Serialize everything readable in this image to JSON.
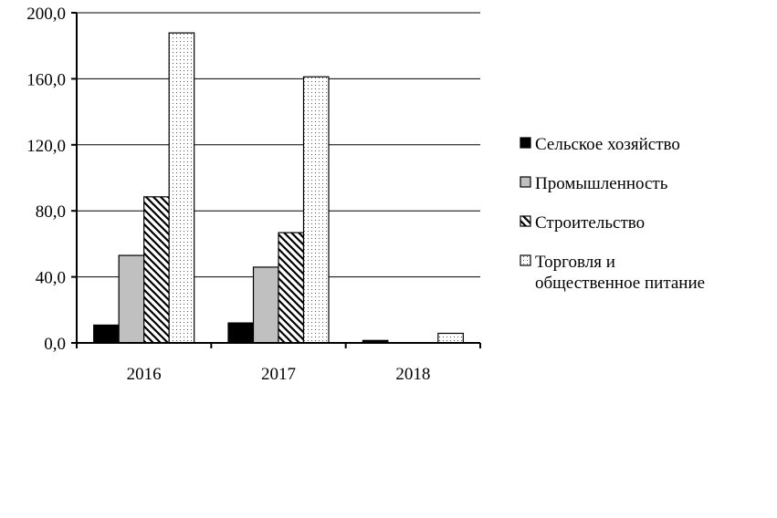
{
  "chart_data": {
    "type": "bar",
    "categories": [
      "2016",
      "2017",
      "2018"
    ],
    "series": [
      {
        "name": "Сельское хозяйство",
        "values": [
          10.8,
          12.1,
          1.5
        ],
        "color": "#000000",
        "fill_style": "solid"
      },
      {
        "name": "Промышленность",
        "values": [
          53.0,
          45.9,
          0
        ],
        "color": "#c0c0c0",
        "fill_style": "solid"
      },
      {
        "name": "Строительство",
        "values": [
          88.5,
          66.8,
          0
        ],
        "color": "#ffffff",
        "fill_style": "diagonal-hatch"
      },
      {
        "name": "Торговля и общественное питание",
        "values": [
          187.8,
          161.2,
          5.8
        ],
        "color": "#ffffff",
        "fill_style": "dotted"
      }
    ],
    "legend_lines": [
      [
        "Сельское хозяйство"
      ],
      [
        "Промышленность"
      ],
      [
        "Строительство"
      ],
      [
        "Торговля и",
        "общественное питание"
      ]
    ],
    "yticks": [
      "0,0",
      "40,0",
      "80,0",
      "120,0",
      "160,0",
      "200,0"
    ],
    "ylim": [
      0,
      200
    ],
    "ytick_step": 40,
    "grid": true,
    "legend_position": "right"
  }
}
